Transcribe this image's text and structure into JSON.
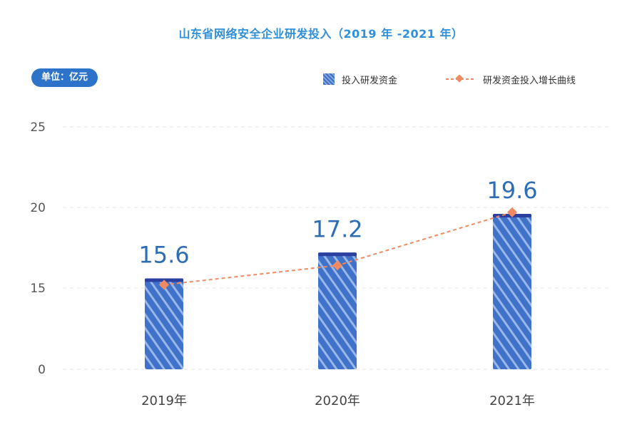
{
  "chart_data": {
    "type": "bar",
    "title": "山东省网络安全企业研发投入（2019 年 -2021 年）",
    "unit_label": "单位：亿元",
    "categories": [
      "2019年",
      "2020年",
      "2021年"
    ],
    "y_ticks": [
      "0",
      "15",
      "20",
      "25"
    ],
    "series": [
      {
        "name": "投入研发资金",
        "kind": "bar",
        "values": [
          15.6,
          17.2,
          19.6
        ],
        "labels": [
          "15.6",
          "17.2",
          "19.6"
        ],
        "color": "#3a6fc4"
      },
      {
        "name": "研发资金投入增长曲线",
        "kind": "line",
        "values": [
          15.2,
          16.4,
          19.7
        ],
        "color": "#ef8a62"
      }
    ],
    "axis_note": "broken y-axis: 0 then 15–25"
  },
  "colors": {
    "title": "#2f8fd8",
    "badge": "#2c73c9",
    "value_label": "#2d6db5",
    "bar_top": "#2a3f9e",
    "bar_fill": "#3f72c8",
    "trend": "#ef8a62"
  }
}
